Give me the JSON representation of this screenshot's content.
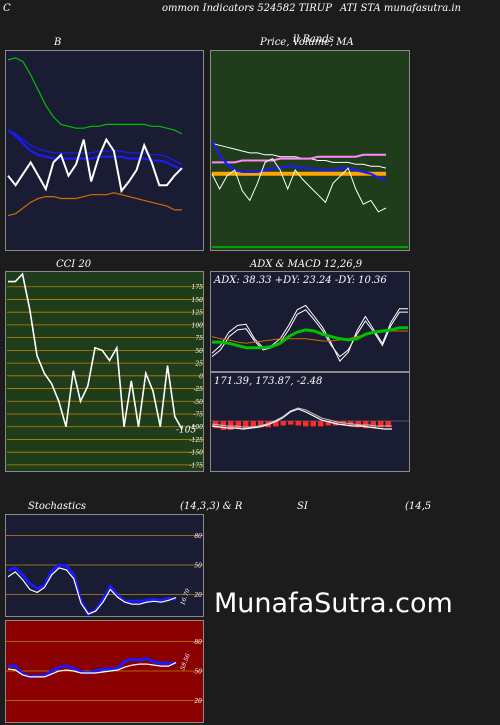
{
  "header": {
    "left": "C",
    "middle": "ommon  Indicators 524582  TIRUP",
    "right": "ATI STA munafasutra.in"
  },
  "colors": {
    "background": "#1c1c1c",
    "navy_panel": "#1a1c33",
    "green_panel": "#1f3d1a",
    "maroon_panel": "#8b0000",
    "white_line": "#ffffff",
    "blue_line": "#1a1aff",
    "green_line": "#00c000",
    "orange_line": "#d26b00"
  },
  "watermark": "MunafaSutra.com",
  "chart_data": [
    {
      "type": "line",
      "panel": "bollinger",
      "title": "B",
      "series": [
        {
          "color": "#00c000",
          "values": [
            98,
            99,
            97,
            90,
            82,
            74,
            68,
            64,
            63,
            62,
            62,
            63,
            63,
            64,
            64,
            64,
            64,
            64,
            64,
            63,
            63,
            62,
            61,
            59
          ]
        },
        {
          "color": "#1a1aff",
          "values": [
            61,
            58,
            54,
            50,
            48,
            47,
            46,
            46,
            46,
            46,
            46,
            46,
            47,
            47,
            47,
            47,
            46,
            46,
            46,
            45,
            45,
            44,
            42,
            40
          ]
        },
        {
          "color": "#1a1aff",
          "values": [
            61,
            59,
            56,
            53,
            51,
            50,
            49,
            49,
            49,
            49,
            49,
            49,
            50,
            50,
            50,
            50,
            49,
            49,
            49,
            48,
            48,
            47,
            45,
            43
          ]
        },
        {
          "color": "#ffffff",
          "values": [
            37,
            32,
            38,
            44,
            37,
            30,
            44,
            48,
            37,
            43,
            56,
            34,
            47,
            56,
            50,
            29,
            34,
            40,
            53,
            44,
            32,
            32,
            37,
            41
          ]
        },
        {
          "color": "#d26b00",
          "values": [
            16,
            17,
            20,
            23,
            25,
            26,
            26,
            25,
            25,
            25,
            26,
            27,
            27,
            27,
            28,
            27,
            26,
            25,
            24,
            23,
            22,
            21,
            19,
            19
          ]
        }
      ]
    },
    {
      "type": "line",
      "panel": "price_ma",
      "title": "Price,  Volume,  MA",
      "title_overlay": "ll  Bands",
      "series": [
        {
          "color": "#ffffff",
          "values": [
            54,
            53,
            52,
            51,
            50,
            49,
            49,
            48,
            48,
            47,
            47,
            47,
            46,
            46,
            45,
            45,
            44,
            44,
            44,
            43,
            43,
            42,
            42,
            41
          ]
        },
        {
          "color": "#ff88ff",
          "values": [
            44,
            44,
            44,
            44,
            45,
            45,
            45,
            45,
            45,
            46,
            46,
            46,
            46,
            46,
            47,
            47,
            47,
            47,
            47,
            47,
            48,
            48,
            48,
            48
          ]
        },
        {
          "color": "#ffa500",
          "values": [
            38,
            38,
            38,
            38,
            38,
            38,
            38,
            38,
            38,
            38,
            38,
            38,
            38,
            38,
            38,
            38,
            38,
            38,
            38,
            38,
            38,
            38,
            38,
            38
          ]
        },
        {
          "color": "#1a1aff",
          "values": [
            55,
            48,
            43,
            40,
            39,
            39,
            39,
            40,
            41,
            41,
            42,
            42,
            41,
            41,
            40,
            40,
            40,
            41,
            41,
            40,
            39,
            38,
            36,
            35
          ]
        },
        {
          "color": "#ffffff",
          "values": [
            38,
            30,
            37,
            40,
            29,
            24,
            33,
            44,
            46,
            40,
            30,
            40,
            35,
            31,
            27,
            23,
            33,
            37,
            41,
            30,
            22,
            24,
            18,
            20
          ]
        }
      ]
    },
    {
      "type": "line",
      "panel": "cci",
      "title": "CCI 20",
      "ticks": [
        175,
        150,
        125,
        100,
        75,
        50,
        25,
        0,
        -25,
        -50,
        -75,
        -100,
        -125,
        -150,
        -175
      ],
      "ylim": [
        -185,
        200
      ],
      "last_label": "-105",
      "series": [
        {
          "color": "#ffffff",
          "values": [
            185,
            185,
            200,
            130,
            40,
            5,
            -15,
            -50,
            -100,
            10,
            -50,
            -20,
            55,
            50,
            30,
            55,
            -100,
            -10,
            -100,
            5,
            -30,
            -100,
            20,
            -80,
            -105
          ]
        }
      ]
    },
    {
      "type": "line",
      "panel": "adx",
      "title": "ADX  & MACD 12,26,9",
      "label": "ADX: 38.33  +DY: 23.24  -DY: 10.36",
      "series": [
        {
          "color": "#ffffff",
          "values": [
            15,
            22,
            34,
            40,
            41,
            28,
            20,
            22,
            28,
            40,
            54,
            58,
            48,
            38,
            24,
            8,
            16,
            35,
            48,
            36,
            24,
            43,
            55,
            55
          ]
        },
        {
          "color": "#ffffff",
          "values": [
            12,
            18,
            30,
            36,
            37,
            26,
            18,
            20,
            25,
            36,
            50,
            54,
            45,
            35,
            22,
            12,
            18,
            32,
            44,
            34,
            22,
            40,
            52,
            52
          ]
        },
        {
          "color": "#d26b00",
          "values": [
            30,
            28,
            27,
            25,
            24,
            25,
            26,
            27,
            28,
            28,
            28,
            28,
            27,
            26,
            26,
            27,
            28,
            30,
            32,
            34,
            34,
            35,
            35,
            35
          ]
        },
        {
          "color": "#00c000",
          "values": [
            25,
            25,
            24,
            22,
            20,
            20,
            20,
            21,
            24,
            30,
            34,
            36,
            35,
            32,
            30,
            28,
            27,
            28,
            32,
            34,
            35,
            36,
            38,
            38
          ]
        }
      ]
    },
    {
      "type": "bar",
      "panel": "macd",
      "label": "171.39,  173.87,  -2.48",
      "histogram": [
        -8,
        -10,
        -10,
        -9,
        -9,
        -8,
        -7,
        -7,
        -6,
        -5,
        -4,
        -5,
        -6,
        -6,
        -6,
        -5,
        -5,
        -5,
        -6,
        -7,
        -8,
        -8,
        -7,
        -7
      ],
      "series": [
        {
          "color": "#ffffff",
          "values": [
            174,
            173,
            172,
            172,
            171,
            172,
            173,
            175,
            178,
            182,
            188,
            191,
            188,
            184,
            180,
            178,
            176,
            175,
            174,
            174,
            173,
            172,
            171,
            171
          ]
        },
        {
          "color": "#c0c0c0",
          "values": [
            176,
            175,
            174,
            174,
            173,
            173,
            174,
            176,
            179,
            183,
            189,
            192,
            190,
            186,
            182,
            180,
            178,
            177,
            176,
            175,
            175,
            174,
            174,
            174
          ]
        }
      ]
    },
    {
      "type": "line",
      "panel": "stochastics",
      "title": "Stochastics",
      "params": "(14,3,3) & R",
      "ticks": [
        80,
        50,
        20
      ],
      "ylim": [
        0,
        100
      ],
      "last_label": "16.70",
      "series": [
        {
          "color": "#1a1aff",
          "values": [
            44,
            47,
            40,
            31,
            26,
            29,
            44,
            50,
            49,
            40,
            13,
            0,
            4,
            15,
            28,
            19,
            13,
            13,
            13,
            14,
            15,
            14,
            16,
            15
          ]
        },
        {
          "color": "#ffffff",
          "values": [
            38,
            43,
            35,
            25,
            22,
            27,
            40,
            47,
            45,
            36,
            11,
            0,
            3,
            12,
            25,
            17,
            12,
            10,
            10,
            12,
            13,
            12,
            14,
            16.7
          ]
        }
      ]
    },
    {
      "type": "line",
      "panel": "rsi",
      "title": "SI",
      "params": "(14,5",
      "ticks": [
        80,
        50,
        20
      ],
      "ylim": [
        0,
        100
      ],
      "last_label": "58.56",
      "series": [
        {
          "color": "#1a1aff",
          "values": [
            55,
            55,
            47,
            44,
            45,
            45,
            50,
            54,
            55,
            53,
            49,
            48,
            50,
            52,
            52,
            53,
            60,
            62,
            61,
            63,
            59,
            58,
            58,
            58
          ]
        },
        {
          "color": "#ffffff",
          "values": [
            52,
            51,
            46,
            44,
            44,
            44,
            47,
            50,
            51,
            50,
            48,
            48,
            48,
            49,
            50,
            51,
            54,
            56,
            57,
            57,
            56,
            55,
            55,
            58.56
          ]
        }
      ]
    }
  ]
}
